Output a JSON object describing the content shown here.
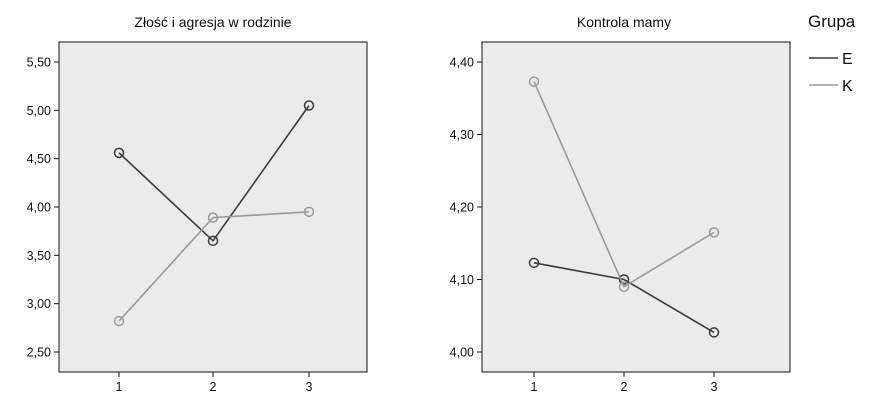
{
  "legend": {
    "title": "Grupa",
    "entries": [
      {
        "name": "E",
        "color": "#3a3a3a"
      },
      {
        "name": "K",
        "color": "#999999"
      }
    ]
  },
  "chart_data": [
    {
      "type": "line",
      "title": "Złość i agresja w rodzinie",
      "xlabel": "",
      "ylabel": "",
      "x": [
        "1",
        "2",
        "3"
      ],
      "ylim": [
        2.5,
        5.5
      ],
      "yticks": [
        "2,50",
        "3,00",
        "3,50",
        "4,00",
        "4,50",
        "5,00",
        "5,50"
      ],
      "ytick_values": [
        2.5,
        3.0,
        3.5,
        4.0,
        4.5,
        5.0,
        5.5
      ],
      "grid": false,
      "series": [
        {
          "name": "E",
          "values": [
            4.56,
            3.65,
            5.05
          ]
        },
        {
          "name": "K",
          "values": [
            2.82,
            3.89,
            3.95
          ]
        }
      ]
    },
    {
      "type": "line",
      "title": "Kontrola mamy",
      "xlabel": "",
      "ylabel": "",
      "x": [
        "1",
        "2",
        "3"
      ],
      "ylim": [
        4.0,
        4.4
      ],
      "yticks": [
        "4,00",
        "4,10",
        "4,20",
        "4,30",
        "4,40"
      ],
      "ytick_values": [
        4.0,
        4.1,
        4.2,
        4.3,
        4.4
      ],
      "grid": false,
      "series": [
        {
          "name": "E",
          "values": [
            4.123,
            4.1,
            4.027
          ]
        },
        {
          "name": "K",
          "values": [
            4.373,
            4.09,
            4.165
          ]
        }
      ]
    }
  ]
}
